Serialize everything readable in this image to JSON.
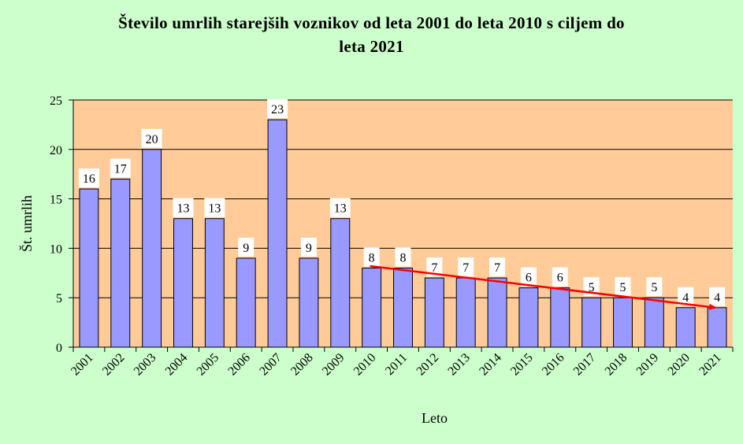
{
  "chart_data": {
    "type": "bar",
    "title_line1": "Število umrlih starejših voznikov od leta 2001 do leta 2010 s ciljem do",
    "title_line2": "leta 2021",
    "xlabel": "Leto",
    "ylabel": "Št. umrlih",
    "ylim": [
      0,
      25
    ],
    "yticks": [
      0,
      5,
      10,
      15,
      20,
      25
    ],
    "grid": true,
    "categories": [
      "2001",
      "2002",
      "2003",
      "2004",
      "2005",
      "2006",
      "2007",
      "2008",
      "2009",
      "2010",
      "2011",
      "2012",
      "2013",
      "2014",
      "2015",
      "2016",
      "2017",
      "2018",
      "2019",
      "2020",
      "2021"
    ],
    "values": [
      16,
      17,
      20,
      13,
      13,
      9,
      23,
      9,
      13,
      8,
      8,
      7,
      7,
      7,
      6,
      6,
      5,
      5,
      5,
      4,
      4
    ],
    "trend_arrow": {
      "from": {
        "x": "2010",
        "y": 8.2
      },
      "to": {
        "x": "2021",
        "y": 4.0
      }
    },
    "colors": {
      "background": "#ccffcc",
      "plot_area": "#ffcc99",
      "bar_fill": "#9999ff",
      "bar_stroke": "#000000",
      "arrow": "#ff0000",
      "label_box": "#ffffff"
    }
  }
}
